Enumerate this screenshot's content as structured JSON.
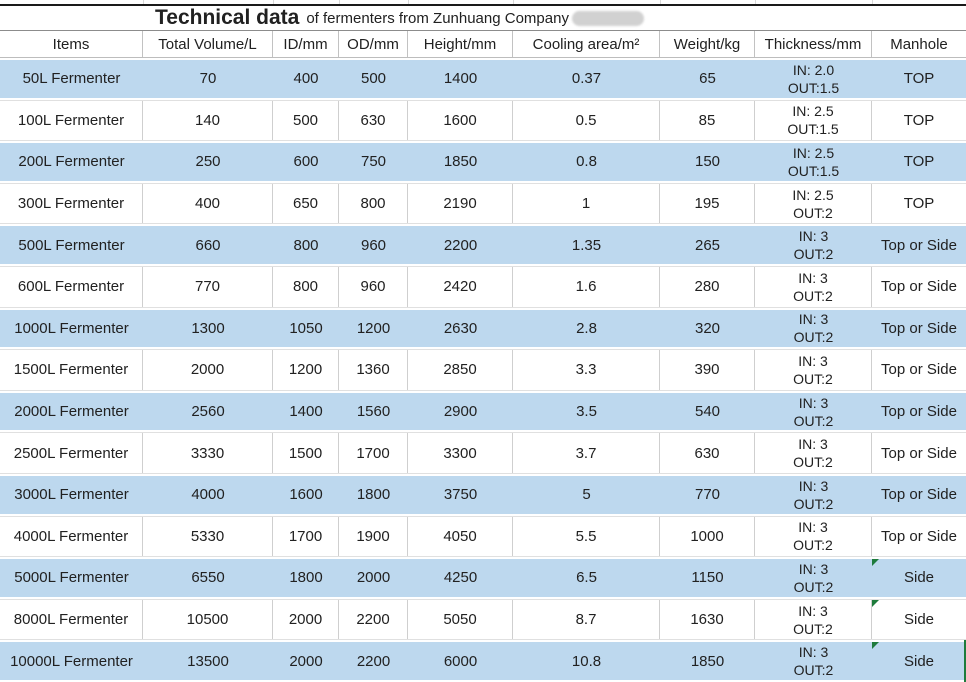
{
  "title": {
    "main": "Technical data",
    "subtitle": "of fermenters from Zunhuang Company"
  },
  "colors": {
    "row_highlight": "#BDD8EE",
    "grid_line": "#CFCFCF",
    "top_rule": "#1A1A1A",
    "error_indicator_green": "#1E7B3C",
    "redaction_blob": "#C9C9C9",
    "text": "#212121"
  },
  "table": {
    "columns": [
      "Items",
      "Total Volume/L",
      "ID/mm",
      "OD/mm",
      "Height/mm",
      "Cooling area/m²",
      "Weight/kg",
      "Thickness/mm",
      "Manhole"
    ],
    "rows": [
      {
        "item": "50L Fermenter",
        "total_volume": "70",
        "id": "400",
        "od": "500",
        "height": "1400",
        "cooling_area": "0.37",
        "weight": "65",
        "thickness_in": "IN: 2.0",
        "thickness_out": "OUT:1.5",
        "manhole": "TOP",
        "highlighted": true,
        "error_indicator": false,
        "green_edge": false
      },
      {
        "item": "100L Fermenter",
        "total_volume": "140",
        "id": "500",
        "od": "630",
        "height": "1600",
        "cooling_area": "0.5",
        "weight": "85",
        "thickness_in": "IN: 2.5",
        "thickness_out": "OUT:1.5",
        "manhole": "TOP",
        "highlighted": false,
        "error_indicator": false,
        "green_edge": false
      },
      {
        "item": "200L Fermenter",
        "total_volume": "250",
        "id": "600",
        "od": "750",
        "height": "1850",
        "cooling_area": "0.8",
        "weight": "150",
        "thickness_in": "IN: 2.5",
        "thickness_out": "OUT:1.5",
        "manhole": "TOP",
        "highlighted": true,
        "error_indicator": false,
        "green_edge": false
      },
      {
        "item": "300L Fermenter",
        "total_volume": "400",
        "id": "650",
        "od": "800",
        "height": "2190",
        "cooling_area": "1",
        "weight": "195",
        "thickness_in": "IN: 2.5",
        "thickness_out": "OUT:2",
        "manhole": "TOP",
        "highlighted": false,
        "error_indicator": false,
        "green_edge": false
      },
      {
        "item": "500L Fermenter",
        "total_volume": "660",
        "id": "800",
        "od": "960",
        "height": "2200",
        "cooling_area": "1.35",
        "weight": "265",
        "thickness_in": "IN: 3",
        "thickness_out": "OUT:2",
        "manhole": "Top or Side",
        "highlighted": true,
        "error_indicator": false,
        "green_edge": false
      },
      {
        "item": "600L Fermenter",
        "total_volume": "770",
        "id": "800",
        "od": "960",
        "height": "2420",
        "cooling_area": "1.6",
        "weight": "280",
        "thickness_in": "IN: 3",
        "thickness_out": "OUT:2",
        "manhole": "Top or Side",
        "highlighted": false,
        "error_indicator": false,
        "green_edge": false
      },
      {
        "item": "1000L Fermenter",
        "total_volume": "1300",
        "id": "1050",
        "od": "1200",
        "height": "2630",
        "cooling_area": "2.8",
        "weight": "320",
        "thickness_in": "IN: 3",
        "thickness_out": "OUT:2",
        "manhole": "Top or Side",
        "highlighted": true,
        "error_indicator": false,
        "green_edge": false
      },
      {
        "item": "1500L Fermenter",
        "total_volume": "2000",
        "id": "1200",
        "od": "1360",
        "height": "2850",
        "cooling_area": "3.3",
        "weight": "390",
        "thickness_in": "IN: 3",
        "thickness_out": "OUT:2",
        "manhole": "Top or Side",
        "highlighted": false,
        "error_indicator": false,
        "green_edge": false
      },
      {
        "item": "2000L Fermenter",
        "total_volume": "2560",
        "id": "1400",
        "od": "1560",
        "height": "2900",
        "cooling_area": "3.5",
        "weight": "540",
        "thickness_in": "IN: 3",
        "thickness_out": "OUT:2",
        "manhole": "Top or Side",
        "highlighted": true,
        "error_indicator": false,
        "green_edge": false
      },
      {
        "item": "2500L Fermenter",
        "total_volume": "3330",
        "id": "1500",
        "od": "1700",
        "height": "3300",
        "cooling_area": "3.7",
        "weight": "630",
        "thickness_in": "IN: 3",
        "thickness_out": "OUT:2",
        "manhole": "Top or Side",
        "highlighted": false,
        "error_indicator": false,
        "green_edge": false
      },
      {
        "item": "3000L Fermenter",
        "total_volume": "4000",
        "id": "1600",
        "od": "1800",
        "height": "3750",
        "cooling_area": "5",
        "weight": "770",
        "thickness_in": "IN: 3",
        "thickness_out": "OUT:2",
        "manhole": "Top or Side",
        "highlighted": true,
        "error_indicator": false,
        "green_edge": false
      },
      {
        "item": "4000L Fermenter",
        "total_volume": "5330",
        "id": "1700",
        "od": "1900",
        "height": "4050",
        "cooling_area": "5.5",
        "weight": "1000",
        "thickness_in": "IN: 3",
        "thickness_out": "OUT:2",
        "manhole": "Top or Side",
        "highlighted": false,
        "error_indicator": false,
        "green_edge": false
      },
      {
        "item": "5000L Fermenter",
        "total_volume": "6550",
        "id": "1800",
        "od": "2000",
        "height": "4250",
        "cooling_area": "6.5",
        "weight": "1150",
        "thickness_in": "IN: 3",
        "thickness_out": "OUT:2",
        "manhole": "Side",
        "highlighted": true,
        "error_indicator": true,
        "green_edge": false
      },
      {
        "item": "8000L Fermenter",
        "total_volume": "10500",
        "id": "2000",
        "od": "2200",
        "height": "5050",
        "cooling_area": "8.7",
        "weight": "1630",
        "thickness_in": "IN: 3",
        "thickness_out": "OUT:2",
        "manhole": "Side",
        "highlighted": false,
        "error_indicator": true,
        "green_edge": false
      },
      {
        "item": "10000L Fermenter",
        "total_volume": "13500",
        "id": "2000",
        "od": "2200",
        "height": "6000",
        "cooling_area": "10.8",
        "weight": "1850",
        "thickness_in": "IN: 3",
        "thickness_out": "OUT:2",
        "manhole": "Side",
        "highlighted": true,
        "error_indicator": true,
        "green_edge": true
      }
    ]
  }
}
